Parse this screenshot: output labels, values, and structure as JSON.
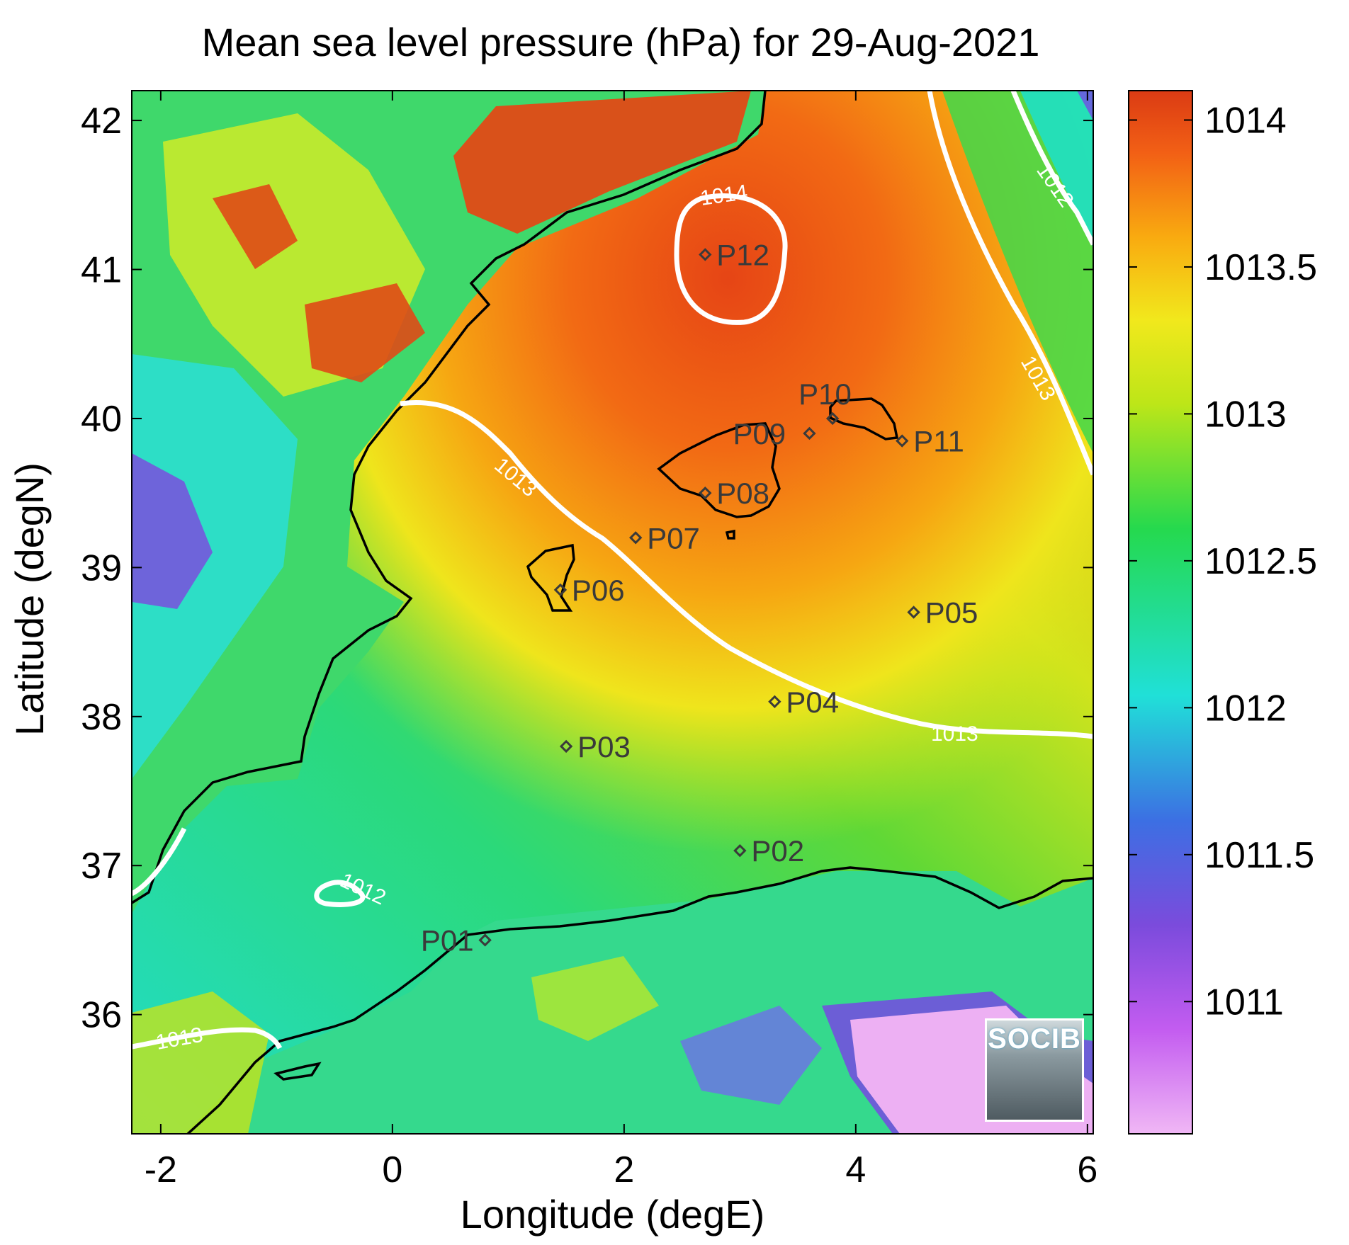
{
  "title": "Mean sea level pressure (hPa) for 29-Aug-2021",
  "map": {
    "xlabel": "Longitude (degE)",
    "ylabel": "Latitude (degN)",
    "lon_range": [
      -2.25,
      6.05
    ],
    "lat_range": [
      35.2,
      42.2
    ],
    "x_ticks": [
      "-2",
      "0",
      "2",
      "4",
      "6"
    ],
    "y_ticks": [
      "36",
      "37",
      "38",
      "39",
      "40",
      "41",
      "42"
    ],
    "points": [
      {
        "label": "P01",
        "lon": 0.8,
        "lat": 36.5
      },
      {
        "label": "P02",
        "lon": 3.0,
        "lat": 37.1
      },
      {
        "label": "P03",
        "lon": 1.5,
        "lat": 37.8
      },
      {
        "label": "P04",
        "lon": 3.3,
        "lat": 38.1
      },
      {
        "label": "P05",
        "lon": 4.5,
        "lat": 38.7
      },
      {
        "label": "P06",
        "lon": 1.45,
        "lat": 38.85
      },
      {
        "label": "P07",
        "lon": 2.1,
        "lat": 39.2
      },
      {
        "label": "P08",
        "lon": 2.7,
        "lat": 39.5
      },
      {
        "label": "P09",
        "lon": 3.6,
        "lat": 39.9
      },
      {
        "label": "P10",
        "lon": 3.8,
        "lat": 40.0
      },
      {
        "label": "P11",
        "lon": 4.4,
        "lat": 39.85
      },
      {
        "label": "P12",
        "lon": 2.7,
        "lat": 41.1
      }
    ],
    "contour_labels": [
      "1014",
      "1012",
      "1013",
      "1013",
      "1013",
      "1012",
      "1013"
    ]
  },
  "colorbar": {
    "ticks": [
      "1014",
      "1013.5",
      "1013",
      "1012.5",
      "1012",
      "1011.5",
      "1011"
    ],
    "min": 1010.55,
    "max": 1014.1,
    "colors": [
      "#f0b7f5",
      "#c35cf0",
      "#7b4bdc",
      "#3c6fe3",
      "#20e0d8",
      "#25d94e",
      "#bde618",
      "#f1e81c",
      "#f9aa10",
      "#f26015",
      "#db3b14"
    ]
  },
  "logo": {
    "text": "SOCIB"
  }
}
